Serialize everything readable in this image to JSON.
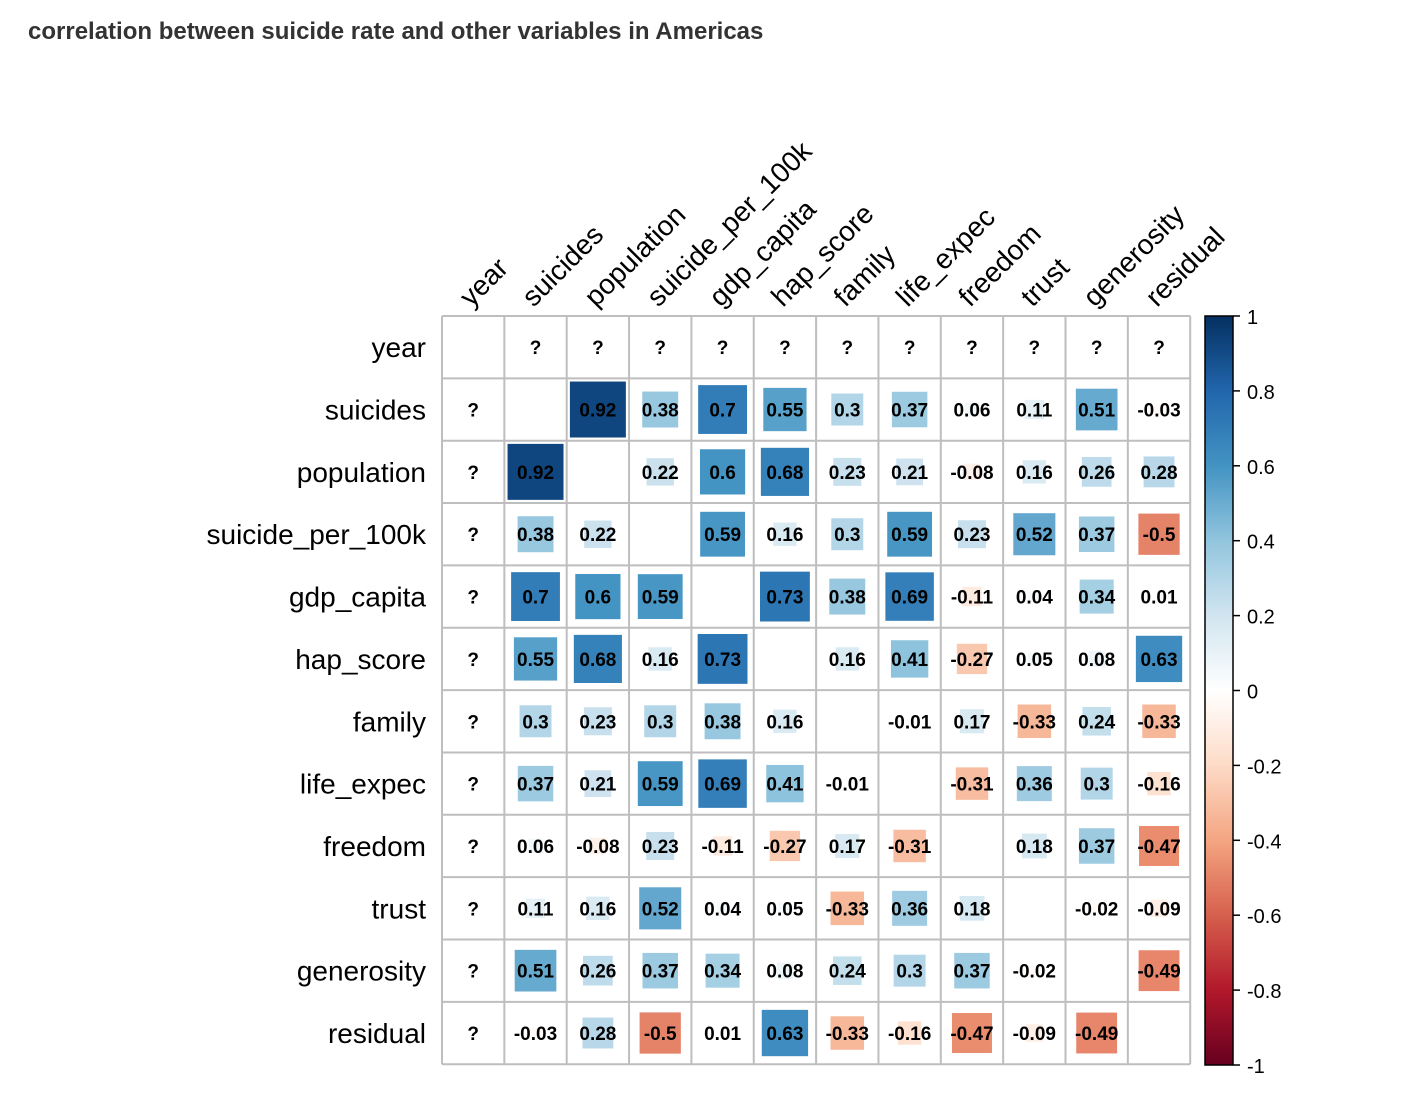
{
  "chart_data": {
    "type": "heatmap",
    "title": "correlation between suicide rate and other variables in Americas",
    "variables": [
      "year",
      "suicides",
      "population",
      "suicide_per_100k",
      "gdp_capita",
      "hap_score",
      "family",
      "life_expec",
      "freedom",
      "trust",
      "generosity",
      "residual"
    ],
    "values": [
      [
        null,
        "?",
        "?",
        "?",
        "?",
        "?",
        "?",
        "?",
        "?",
        "?",
        "?",
        "?"
      ],
      [
        "?",
        null,
        0.92,
        0.38,
        0.7,
        0.55,
        0.3,
        0.37,
        0.06,
        0.11,
        0.51,
        -0.03
      ],
      [
        "?",
        0.92,
        null,
        0.22,
        0.6,
        0.68,
        0.23,
        0.21,
        -0.08,
        0.16,
        0.26,
        0.28
      ],
      [
        "?",
        0.38,
        0.22,
        null,
        0.59,
        0.16,
        0.3,
        0.59,
        0.23,
        0.52,
        0.37,
        -0.5
      ],
      [
        "?",
        0.7,
        0.6,
        0.59,
        null,
        0.73,
        0.38,
        0.69,
        -0.11,
        0.04,
        0.34,
        0.01
      ],
      [
        "?",
        0.55,
        0.68,
        0.16,
        0.73,
        null,
        0.16,
        0.41,
        -0.27,
        0.05,
        0.08,
        0.63
      ],
      [
        "?",
        0.3,
        0.23,
        0.3,
        0.38,
        0.16,
        null,
        -0.01,
        0.17,
        -0.33,
        0.24,
        -0.33
      ],
      [
        "?",
        0.37,
        0.21,
        0.59,
        0.69,
        0.41,
        -0.01,
        null,
        -0.31,
        0.36,
        0.3,
        -0.16
      ],
      [
        "?",
        0.06,
        -0.08,
        0.23,
        -0.11,
        -0.27,
        0.17,
        -0.31,
        null,
        0.18,
        0.37,
        -0.47
      ],
      [
        "?",
        0.11,
        0.16,
        0.52,
        0.04,
        0.05,
        -0.33,
        0.36,
        0.18,
        null,
        -0.02,
        -0.09
      ],
      [
        "?",
        0.51,
        0.26,
        0.37,
        0.34,
        0.08,
        0.24,
        0.3,
        0.37,
        -0.02,
        null,
        -0.49
      ],
      [
        "?",
        -0.03,
        0.28,
        -0.5,
        0.01,
        0.63,
        -0.33,
        -0.16,
        -0.47,
        -0.09,
        -0.49,
        null
      ]
    ],
    "color_scale": {
      "range": [
        -1,
        1
      ],
      "ticks": [
        "1",
        "0.8",
        "0.6",
        "0.4",
        "0.2",
        "0",
        "-0.2",
        "-0.4",
        "-0.6",
        "-0.8",
        "-1"
      ],
      "stops": [
        "#67001F",
        "#B2182B",
        "#D6604D",
        "#F4A582",
        "#FDDBC7",
        "#FFFFFF",
        "#D1E5F0",
        "#92C5DE",
        "#4393C3",
        "#2166AC",
        "#053061"
      ]
    },
    "cell_shape": "square sized by |r|",
    "legend": "right"
  }
}
